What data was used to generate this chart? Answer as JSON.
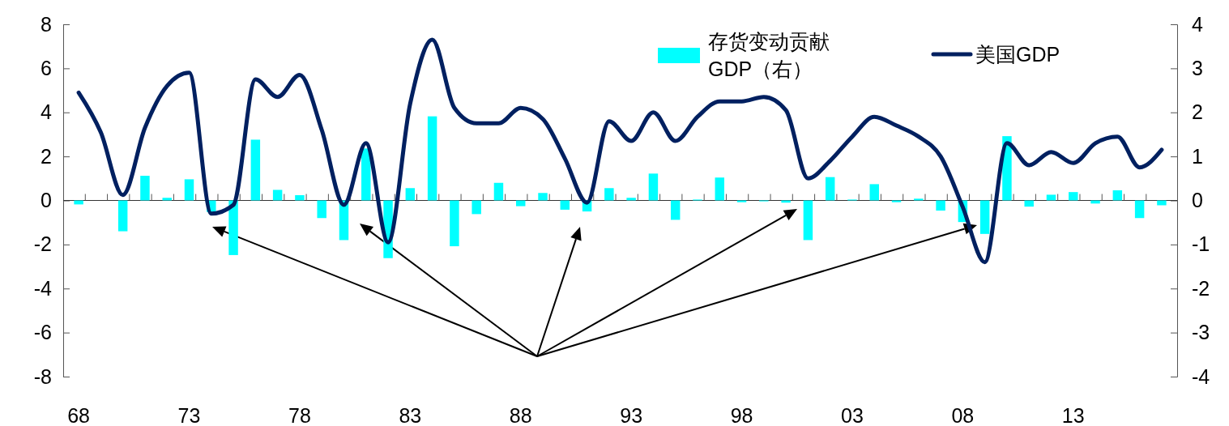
{
  "chart_data": {
    "type": "bar",
    "categories": [
      "68",
      null,
      null,
      null,
      null,
      "73",
      null,
      null,
      null,
      null,
      "78",
      null,
      null,
      null,
      null,
      "83",
      null,
      null,
      null,
      null,
      "88",
      null,
      null,
      null,
      null,
      "93",
      null,
      null,
      null,
      null,
      "98",
      null,
      null,
      null,
      null,
      "03",
      null,
      null,
      null,
      null,
      "08",
      null,
      null,
      null,
      null,
      "13",
      null,
      null,
      null,
      null
    ],
    "series": [
      {
        "name": "存货变动贡献GDP（右）",
        "axis": "y2",
        "color": "#00ffff",
        "values": [
          -0.09,
          0,
          -0.7,
          0.56,
          0.06,
          0.48,
          -0.26,
          -1.24,
          1.38,
          0.24,
          0.12,
          -0.4,
          -0.9,
          1.18,
          -1.31,
          0.28,
          1.91,
          -1.04,
          -0.31,
          0.4,
          -0.13,
          0.17,
          -0.21,
          -0.25,
          0.28,
          0.06,
          0.61,
          -0.44,
          0.02,
          0.52,
          -0.04,
          -0.02,
          -0.05,
          -0.9,
          0.53,
          0.02,
          0.37,
          -0.04,
          0.04,
          -0.23,
          -0.49,
          -0.76,
          1.46,
          -0.14,
          0.13,
          0.19,
          -0.07,
          0.23,
          -0.4,
          -0.11
        ]
      },
      {
        "name": "美国GDP",
        "type": "line",
        "color": "#002060",
        "values": [
          4.9,
          3.1,
          0.25,
          3.3,
          5.2,
          5.8,
          -0.6,
          -0.2,
          5.5,
          4.7,
          5.7,
          3.2,
          -0.2,
          2.6,
          -1.9,
          4.4,
          7.3,
          4.2,
          3.5,
          3.5,
          4.2,
          3.7,
          1.9,
          -0.1,
          3.6,
          2.7,
          4.0,
          2.7,
          3.8,
          4.5,
          4.5,
          4.7,
          4.1,
          1.0,
          1.8,
          2.9,
          3.8,
          3.4,
          2.9,
          2.0,
          -0.3,
          -2.8,
          2.6,
          1.6,
          2.2,
          1.7,
          2.6,
          2.9,
          1.5,
          2.3
        ]
      }
    ],
    "ylim": [
      -8,
      8
    ],
    "yticks": [
      -8,
      -6,
      -4,
      -2,
      0,
      2,
      4,
      6,
      8
    ],
    "y2lim": [
      -4,
      4
    ],
    "y2ticks": [
      -4,
      -3,
      -2,
      -1,
      0,
      1,
      2,
      3,
      4
    ],
    "legend": "top right"
  }
}
